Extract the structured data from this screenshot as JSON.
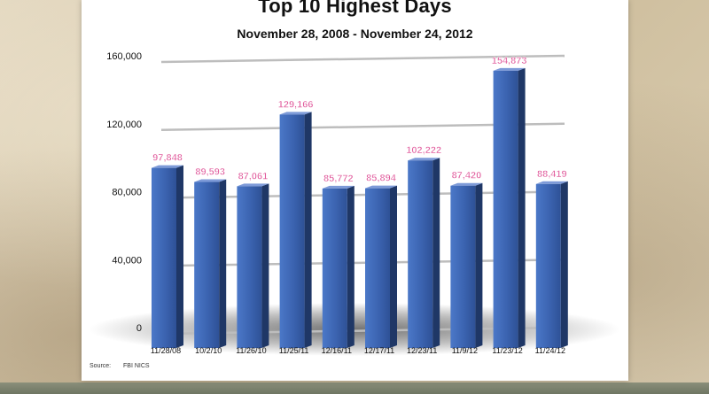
{
  "chart_data": {
    "type": "bar",
    "title": "Top 10 Highest Days",
    "subtitle": "November 28, 2008 - November 24, 2012",
    "categories": [
      "11/28/08",
      "10/2/10",
      "11/26/10",
      "11/25/11",
      "12/16/11",
      "12/17/11",
      "12/23/11",
      "11/9/12",
      "11/23/12",
      "11/24/12"
    ],
    "values": [
      97848,
      89593,
      87061,
      129166,
      85772,
      85894,
      102222,
      87420,
      154873,
      88419
    ],
    "value_labels": [
      "97,848",
      "89,593",
      "87,061",
      "129,166",
      "85,772",
      "85,894",
      "102,222",
      "87,420",
      "154,873",
      "88,419"
    ],
    "ylim": [
      0,
      160000
    ],
    "yticks": [
      0,
      40000,
      80000,
      120000,
      160000
    ],
    "ytick_labels": [
      "0",
      "40,000",
      "80,000",
      "120,000",
      "160,000"
    ],
    "grid": true,
    "xlabel": "",
    "ylabel": ""
  },
  "source": {
    "label": "Source:",
    "value": "FBI NICS"
  },
  "colors": {
    "bar": "#3b63b0",
    "bar_side": "#1f3766",
    "bar_top": "#7d9ad8",
    "value_label": "#e0579a",
    "grid": "#bdbdbd"
  }
}
